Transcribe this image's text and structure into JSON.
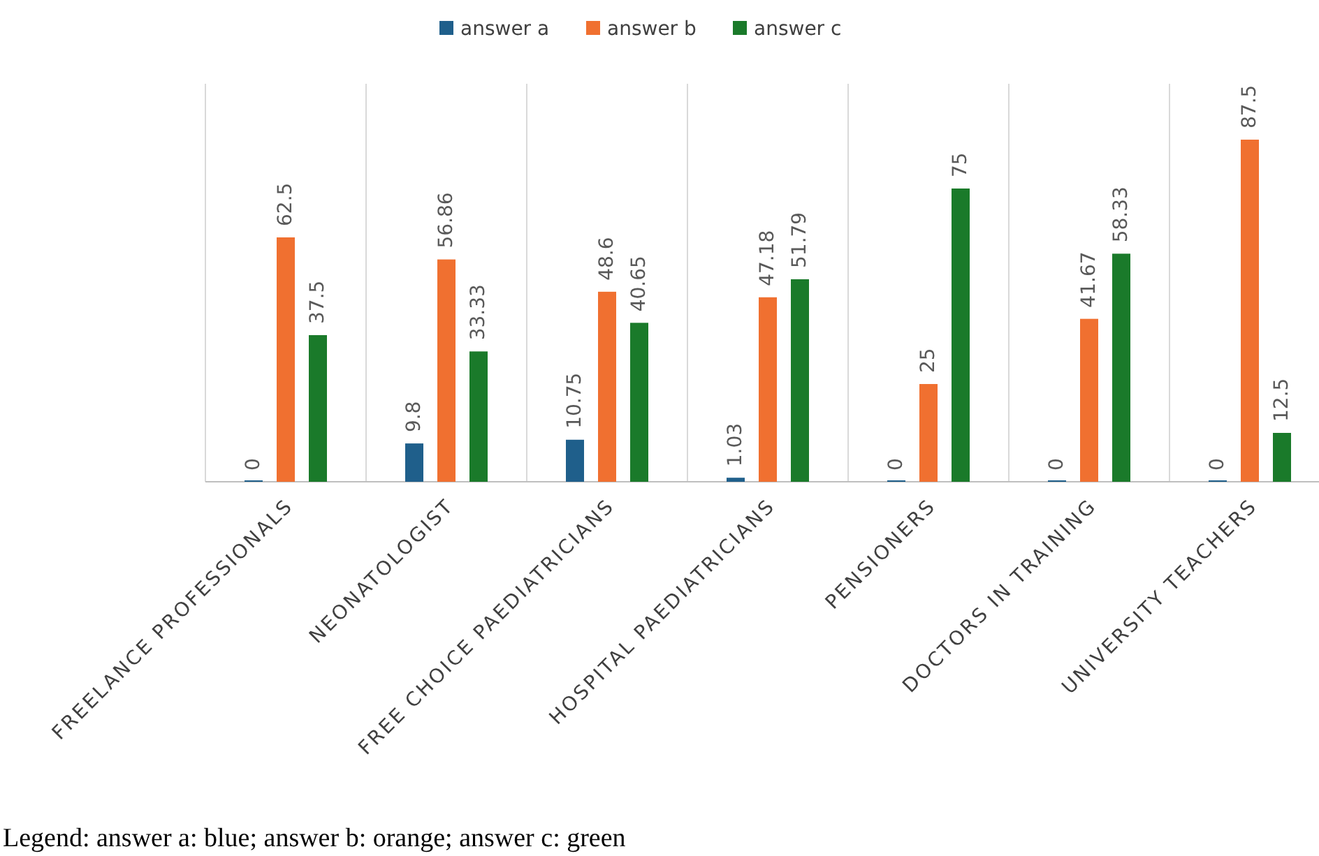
{
  "chart_data": {
    "type": "bar",
    "categories": [
      "FREELANCE PROFESSIONALS",
      "NEONATOLOGIST",
      "FREE CHOICE PAEDIATRICIANS",
      "HOSPITAL PAEDIATRICIANS",
      "PENSIONERS",
      "DOCTORS IN TRAINING",
      "UNIVERSITY TEACHERS"
    ],
    "series": [
      {
        "name": "answer a",
        "color": "#1f5f8b",
        "values": [
          0,
          9.8,
          10.75,
          1.03,
          0,
          0,
          0
        ]
      },
      {
        "name": "answer b",
        "color": "#f07030",
        "values": [
          62.5,
          56.86,
          48.6,
          47.18,
          25,
          41.67,
          87.5
        ]
      },
      {
        "name": "answer c",
        "color": "#1a7a2a",
        "values": [
          37.5,
          33.33,
          40.65,
          51.79,
          75,
          58.33,
          12.5
        ]
      }
    ],
    "data_labels": true,
    "legend": "top",
    "grid": "x",
    "tick_labels": "x",
    "annotations": [
      "Legend: answer a: blue; answer b: orange; answer c: green"
    ]
  }
}
